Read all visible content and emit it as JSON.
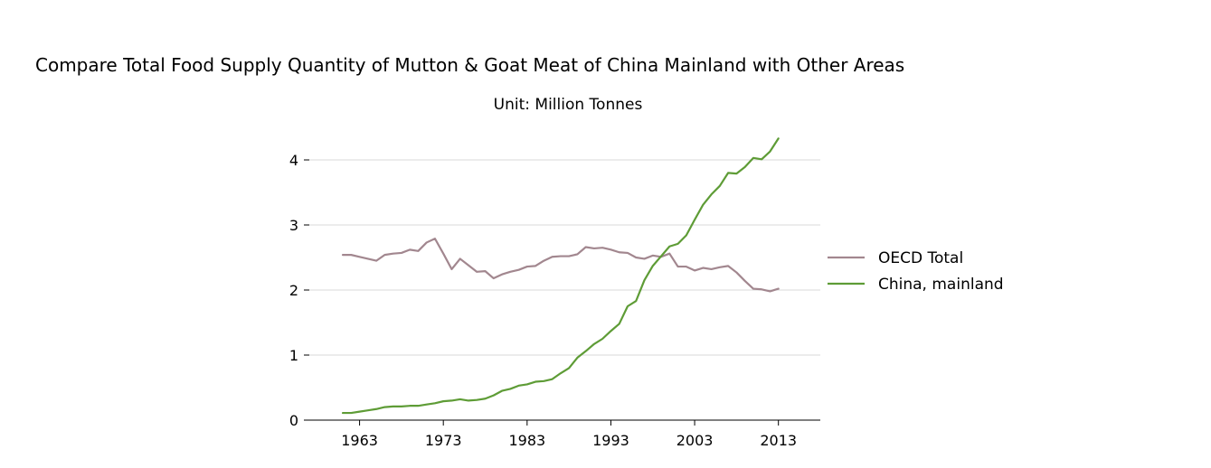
{
  "chart_data": {
    "type": "line",
    "title": "Compare Total Food Supply Quantity of Mutton & Goat Meat of China Mainland with Other Areas",
    "subtitle": "Unit: Million Tonnes",
    "xlabel": "",
    "ylabel": "",
    "xlim": [
      1957,
      2018
    ],
    "ylim": [
      0,
      4.5
    ],
    "x_ticks": [
      1963,
      1973,
      1983,
      1993,
      2003,
      2013
    ],
    "y_ticks": [
      0,
      1,
      2,
      3,
      4
    ],
    "grid": "horizontal",
    "legend_position": "right",
    "x": [
      1961,
      1962,
      1963,
      1964,
      1965,
      1966,
      1967,
      1968,
      1969,
      1970,
      1971,
      1972,
      1973,
      1974,
      1975,
      1976,
      1977,
      1978,
      1979,
      1980,
      1981,
      1982,
      1983,
      1984,
      1985,
      1986,
      1987,
      1988,
      1989,
      1990,
      1991,
      1992,
      1993,
      1994,
      1995,
      1996,
      1997,
      1998,
      1999,
      2000,
      2001,
      2002,
      2003,
      2004,
      2005,
      2006,
      2007,
      2008,
      2009,
      2010,
      2011,
      2012,
      2013
    ],
    "series": [
      {
        "name": "OECD Total",
        "color": "#a2878f",
        "values": [
          2.54,
          2.54,
          2.51,
          2.48,
          2.45,
          2.54,
          2.56,
          2.57,
          2.62,
          2.6,
          2.73,
          2.79,
          2.56,
          2.32,
          2.48,
          2.38,
          2.28,
          2.29,
          2.18,
          2.24,
          2.28,
          2.31,
          2.36,
          2.37,
          2.45,
          2.51,
          2.52,
          2.52,
          2.55,
          2.66,
          2.64,
          2.65,
          2.62,
          2.58,
          2.57,
          2.5,
          2.48,
          2.53,
          2.51,
          2.56,
          2.36,
          2.36,
          2.3,
          2.34,
          2.32,
          2.35,
          2.37,
          2.27,
          2.14,
          2.02,
          2.01,
          1.98,
          2.02
        ]
      },
      {
        "name": "China, mainland",
        "color": "#5e9c36",
        "values": [
          0.11,
          0.11,
          0.13,
          0.15,
          0.17,
          0.2,
          0.21,
          0.21,
          0.22,
          0.22,
          0.24,
          0.26,
          0.29,
          0.3,
          0.32,
          0.3,
          0.31,
          0.33,
          0.38,
          0.45,
          0.48,
          0.53,
          0.55,
          0.59,
          0.6,
          0.63,
          0.72,
          0.8,
          0.96,
          1.06,
          1.17,
          1.25,
          1.37,
          1.48,
          1.75,
          1.83,
          2.15,
          2.37,
          2.52,
          2.67,
          2.71,
          2.84,
          3.08,
          3.31,
          3.47,
          3.6,
          3.8,
          3.79,
          3.89,
          4.03,
          4.01,
          4.13,
          4.33
        ]
      }
    ]
  }
}
